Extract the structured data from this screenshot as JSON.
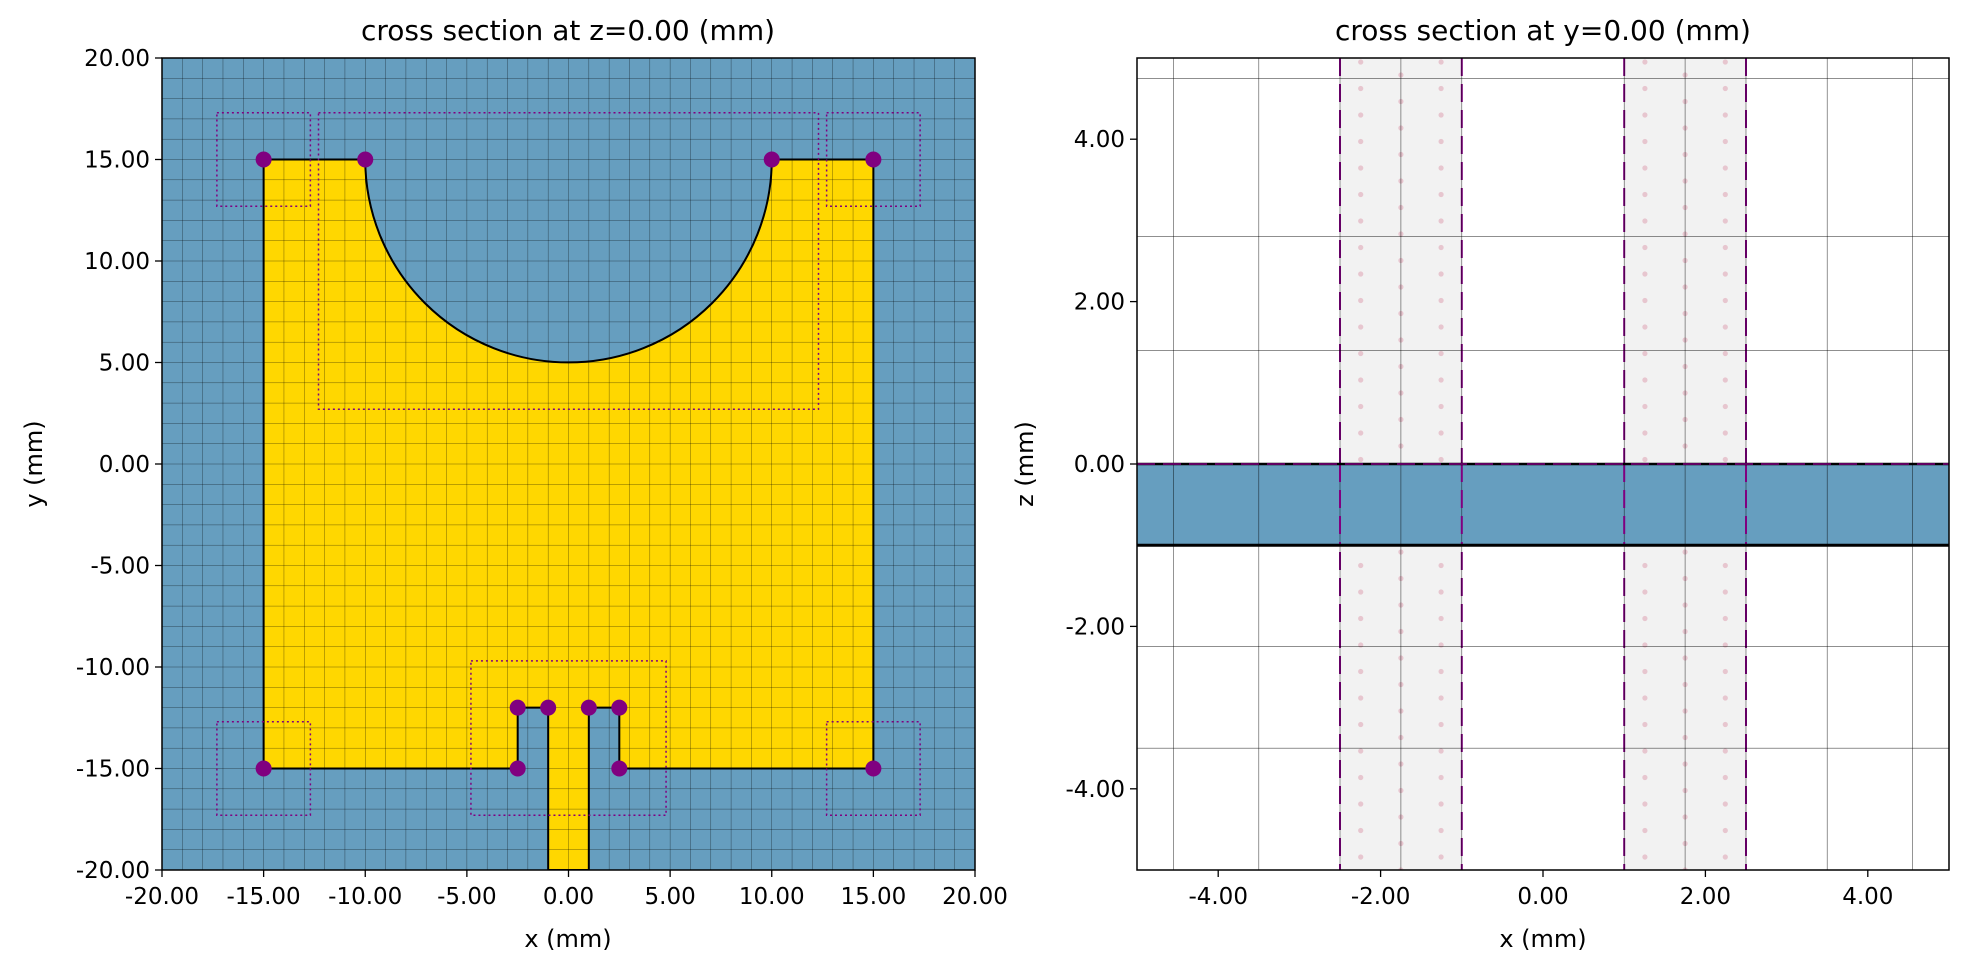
{
  "chart_data": [
    {
      "type": "diagram",
      "title": "cross section at z=0.00 (mm)",
      "xlabel": "x (mm)",
      "ylabel": "y (mm)",
      "xlim": [
        -20,
        20
      ],
      "ylim": [
        -20,
        20
      ],
      "xticks": [
        "-20.00",
        "-15.00",
        "-10.00",
        "-5.00",
        "0.00",
        "5.00",
        "10.00",
        "15.00",
        "20.00"
      ],
      "yticks": [
        "-20.00",
        "-15.00",
        "-10.00",
        "-5.00",
        "0.00",
        "5.00",
        "10.00",
        "15.00",
        "20.00"
      ],
      "background_color": "#669ebf",
      "patch_color": "#ffd700",
      "marker_color": "#800080",
      "grid": true,
      "patch_outline": [
        [
          -15,
          -15
        ],
        [
          -15,
          15
        ],
        [
          -10,
          15
        ],
        [
          10,
          15
        ],
        [
          15,
          15
        ],
        [
          15,
          -15
        ],
        [
          2.5,
          -15
        ],
        [
          2.5,
          -12
        ],
        [
          1,
          -12
        ],
        [
          1,
          -20
        ],
        [
          -1,
          -20
        ],
        [
          -1,
          -12
        ],
        [
          -2.5,
          -12
        ],
        [
          -2.5,
          -15
        ]
      ],
      "semicircle_cutout": {
        "cx": 0,
        "cy": 15,
        "r": 10
      },
      "vertex_markers": [
        [
          -15,
          15
        ],
        [
          -10,
          15
        ],
        [
          10,
          15
        ],
        [
          15,
          15
        ],
        [
          -15,
          -15
        ],
        [
          15,
          -15
        ],
        [
          -2.5,
          -12
        ],
        [
          -1,
          -12
        ],
        [
          1,
          -12
        ],
        [
          2.5,
          -12
        ],
        [
          -2.5,
          -15
        ],
        [
          2.5,
          -15
        ]
      ],
      "refinement_boxes": [
        {
          "x": [
            -17.3,
            -12.7
          ],
          "y": [
            12.7,
            17.3
          ]
        },
        {
          "x": [
            12.7,
            17.3
          ],
          "y": [
            12.7,
            17.3
          ]
        },
        {
          "x": [
            -17.3,
            -12.7
          ],
          "y": [
            -17.3,
            -12.7
          ]
        },
        {
          "x": [
            12.7,
            17.3
          ],
          "y": [
            -17.3,
            -12.7
          ]
        },
        {
          "x": [
            -12.3,
            12.3
          ],
          "y": [
            2.7,
            17.3
          ]
        },
        {
          "x": [
            -4.8,
            4.8
          ],
          "y": [
            -17.3,
            -9.7
          ]
        }
      ]
    },
    {
      "type": "diagram",
      "title": "cross section at y=0.00 (mm)",
      "xlabel": "x (mm)",
      "ylabel": "z (mm)",
      "xlim": [
        -5,
        5
      ],
      "ylim": [
        -5,
        5
      ],
      "xticks": [
        "-4.00",
        "-2.00",
        "0.00",
        "2.00",
        "4.00"
      ],
      "yticks": [
        "-4.00",
        "-2.00",
        "0.00",
        "2.00",
        "4.00"
      ],
      "substrate": {
        "z": [
          -1,
          0
        ],
        "color": "#669ebf"
      },
      "port_columns": [
        {
          "x": [
            -2.5,
            -1.0
          ],
          "color": "#f2f2f2"
        },
        {
          "x": [
            1.0,
            2.5
          ],
          "color": "#f2f2f2"
        }
      ],
      "grid_x": [
        -4.55,
        -3.5,
        -2.5,
        -1.75,
        -1.0,
        1.0,
        1.75,
        2.5,
        3.5,
        4.55
      ],
      "grid_z": [
        4.75,
        2.8,
        1.4,
        -2.25,
        -3.5
      ]
    }
  ]
}
